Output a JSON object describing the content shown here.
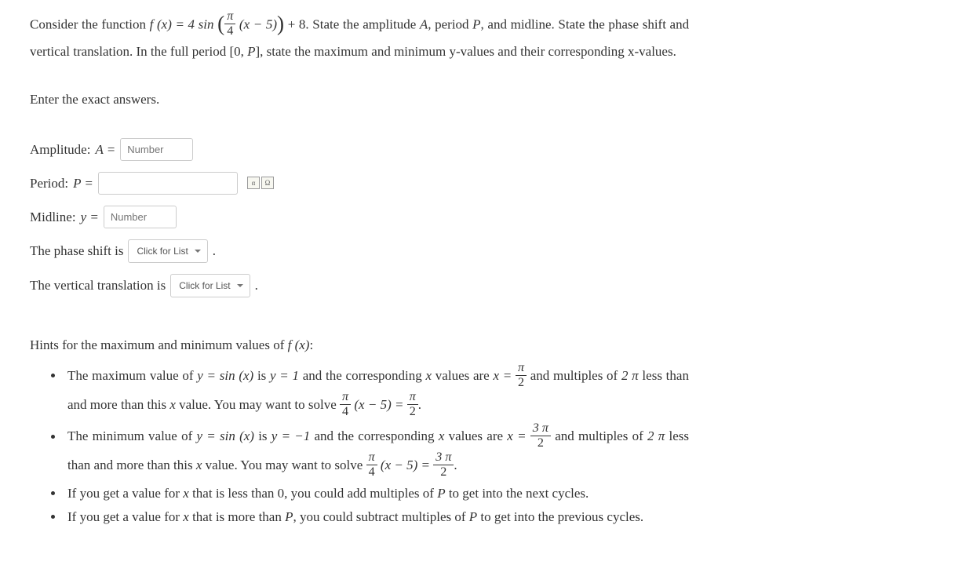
{
  "question": {
    "line1_pre": "Consider the function ",
    "func_def": "f (x) = 4 sin",
    "inner_frac_num": "π",
    "inner_frac_den": "4",
    "inner_rest": "(x − 5)",
    "after_paren": " + 8.",
    "line1_post": " State the amplitude ",
    "A": "A",
    "comma_period": ", period ",
    "P": "P",
    "line1_end": ", and",
    "line2": "midline. State the phase shift and vertical translation. In the full period [0, ",
    "line2_P": "P",
    "line2_end": "], state the maximum and",
    "line3": "minimum y-values and their corresponding x-values."
  },
  "instruction": "Enter the exact answers.",
  "answers": {
    "amplitude_label": "Amplitude: ",
    "amplitude_var": "A = ",
    "period_label": "Period: ",
    "period_var": "P = ",
    "midline_label": "Midline: ",
    "midline_var": "y = ",
    "phase_label": "The phase shift is ",
    "vertical_label": "The vertical translation is ",
    "number_placeholder": "Number",
    "dropdown_placeholder": "Click for List",
    "period_dot": " ."
  },
  "hints": {
    "header": "Hints for the maximum and minimum values of ",
    "header_fx": "f (x)",
    "header_colon": ":",
    "b1_a": "The maximum value of ",
    "b1_eq1": "y = sin (x)",
    "b1_b": " is ",
    "b1_eq2": "y = 1",
    "b1_c": " and the corresponding ",
    "b1_x": "x",
    "b1_d": " values are ",
    "b1_eq3": "x = ",
    "b1_frac_num": "π",
    "b1_frac_den": "2",
    "b1_e": " and",
    "b1_line2a": "multiples of ",
    "b1_2pi": "2 π",
    "b1_line2b": " less than and more than this ",
    "b1_line2c": " value. You may want to solve ",
    "b1_solve_frac_num": "π",
    "b1_solve_frac_den": "4",
    "b1_solve_rest": "(x − 5) = ",
    "b1_solve_ans_num": "π",
    "b1_solve_ans_den": "2",
    "b2_a": "The minimum value of ",
    "b2_eq1": "y = sin (x)",
    "b2_b": " is ",
    "b2_eq2": "y = −1",
    "b2_c": " and the corresponding ",
    "b2_d": " values are ",
    "b2_eq3": "x = ",
    "b2_frac_num": "3 π",
    "b2_frac_den": "2",
    "b2_e": " and",
    "b2_line2a": "multiples of ",
    "b2_line2b": " less than and more than this ",
    "b2_line2c": " value. You may want to solve ",
    "b2_solve_ans_num": "3 π",
    "b2_solve_ans_den": "2",
    "b3": "If you get a value for x that is less than 0, you could add multiples of P to get into the next cycles.",
    "b4": "If you get a value for x that is more than P, you could subtract multiples of P to get into the previous cycles."
  }
}
